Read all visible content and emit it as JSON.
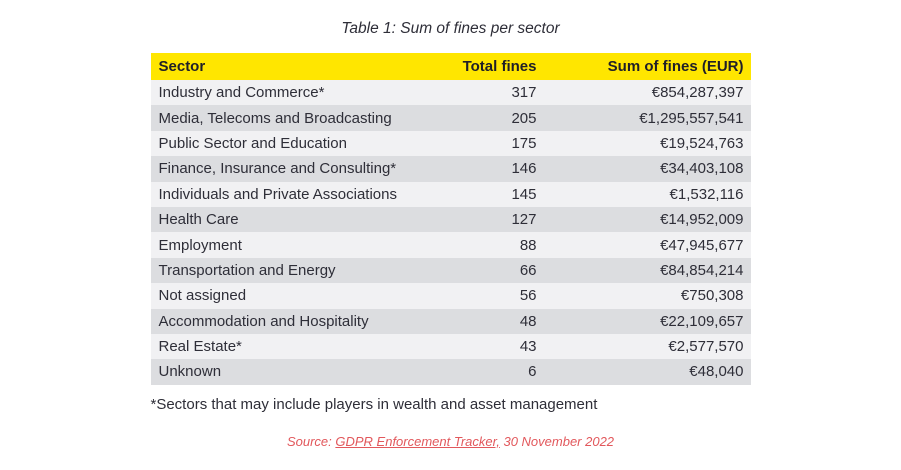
{
  "page": {
    "title": "Table 1: Sum of fines per sector",
    "footnote": "*Sectors that may include players in wealth and asset management",
    "source": {
      "prefix": "Source: ",
      "link_text": "GDPR Enforcement Tracker,",
      "suffix": " 30 November 2022"
    }
  },
  "colors": {
    "header_bg": "#ffe600",
    "row_light": "#f1f1f3",
    "row_dark": "#dcdde0",
    "text": "#2e2e38",
    "source_red": "#e2585c"
  },
  "chart_data": {
    "type": "table",
    "title": "Table 1: Sum of fines per sector",
    "columns": [
      "Sector",
      "Total fines",
      "Sum of fines (EUR)"
    ],
    "rows": [
      {
        "sector": "Industry and Commerce*",
        "total_fines": "317",
        "sum_of_fines": "€854,287,397"
      },
      {
        "sector": "Media, Telecoms and Broadcasting",
        "total_fines": "205",
        "sum_of_fines": "€1,295,557,541"
      },
      {
        "sector": "Public Sector and Education",
        "total_fines": "175",
        "sum_of_fines": "€19,524,763"
      },
      {
        "sector": "Finance, Insurance and Consulting*",
        "total_fines": "146",
        "sum_of_fines": "€34,403,108"
      },
      {
        "sector": "Individuals and Private Associations",
        "total_fines": "145",
        "sum_of_fines": "€1,532,116"
      },
      {
        "sector": "Health Care",
        "total_fines": "127",
        "sum_of_fines": "€14,952,009"
      },
      {
        "sector": "Employment",
        "total_fines": "88",
        "sum_of_fines": "€47,945,677"
      },
      {
        "sector": "Transportation and Energy",
        "total_fines": "66",
        "sum_of_fines": "€84,854,214"
      },
      {
        "sector": "Not assigned",
        "total_fines": "56",
        "sum_of_fines": "€750,308"
      },
      {
        "sector": "Accommodation and Hospitality",
        "total_fines": "48",
        "sum_of_fines": "€22,109,657"
      },
      {
        "sector": "Real Estate*",
        "total_fines": "43",
        "sum_of_fines": "€2,577,570"
      },
      {
        "sector": "Unknown",
        "total_fines": "6",
        "sum_of_fines": "€48,040"
      }
    ]
  }
}
